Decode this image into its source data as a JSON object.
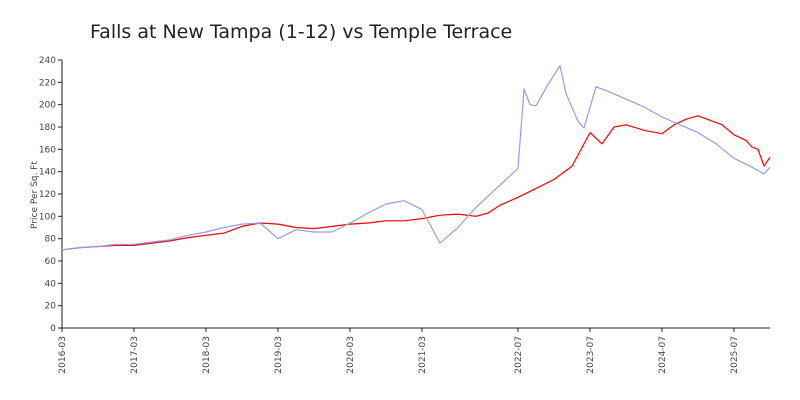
{
  "chart_data": {
    "type": "line",
    "title": "Falls at New Tampa (1-12) vs Temple Terrace",
    "xlabel": "",
    "ylabel": "Price Per Sq. Ft",
    "ylim": [
      0,
      240
    ],
    "yticks": [
      0,
      20,
      40,
      60,
      80,
      100,
      120,
      140,
      160,
      180,
      200,
      220,
      240
    ],
    "xlim": [
      "2016-03",
      "2026-01"
    ],
    "xticks": [
      "2016-03",
      "2017-03",
      "2018-03",
      "2019-03",
      "2020-03",
      "2021-03",
      "2022-07",
      "2023-07",
      "2024-07",
      "2025-07"
    ],
    "grid": false,
    "legend": "none",
    "series": [
      {
        "color": "#ff0000",
        "points": [
          [
            "2016-03",
            70
          ],
          [
            "2016-06",
            72
          ],
          [
            "2016-09",
            73
          ],
          [
            "2016-12",
            74
          ],
          [
            "2017-03",
            74
          ],
          [
            "2017-06",
            76
          ],
          [
            "2017-09",
            78
          ],
          [
            "2017-12",
            81
          ],
          [
            "2018-03",
            83
          ],
          [
            "2018-06",
            85
          ],
          [
            "2018-09",
            91
          ],
          [
            "2018-12",
            94
          ],
          [
            "2019-03",
            93
          ],
          [
            "2019-06",
            90
          ],
          [
            "2019-09",
            89
          ],
          [
            "2019-12",
            91
          ],
          [
            "2020-03",
            93
          ],
          [
            "2020-06",
            94
          ],
          [
            "2020-09",
            96
          ],
          [
            "2020-12",
            96
          ],
          [
            "2021-03",
            98
          ],
          [
            "2021-06",
            101
          ],
          [
            "2021-09",
            102
          ],
          [
            "2021-12",
            100
          ],
          [
            "2022-02",
            103
          ],
          [
            "2022-04",
            110
          ],
          [
            "2022-07",
            117
          ],
          [
            "2022-10",
            125
          ],
          [
            "2023-01",
            133
          ],
          [
            "2023-04",
            145
          ],
          [
            "2023-07",
            175
          ],
          [
            "2023-09",
            165
          ],
          [
            "2023-11",
            180
          ],
          [
            "2024-01",
            182
          ],
          [
            "2024-04",
            177
          ],
          [
            "2024-07",
            174
          ],
          [
            "2024-09",
            182
          ],
          [
            "2024-11",
            187
          ],
          [
            "2025-01",
            190
          ],
          [
            "2025-03",
            186
          ],
          [
            "2025-05",
            182
          ],
          [
            "2025-07",
            173
          ],
          [
            "2025-09",
            168
          ],
          [
            "2025-10",
            162
          ],
          [
            "2025-11",
            160
          ],
          [
            "2025-12",
            145
          ],
          [
            "2026-01",
            153
          ]
        ]
      },
      {
        "color": "#9999ee",
        "points": [
          [
            "2016-03",
            70
          ],
          [
            "2016-06",
            72
          ],
          [
            "2016-09",
            73
          ],
          [
            "2016-12",
            75
          ],
          [
            "2017-03",
            75
          ],
          [
            "2017-06",
            77
          ],
          [
            "2017-09",
            79
          ],
          [
            "2017-12",
            83
          ],
          [
            "2018-03",
            86
          ],
          [
            "2018-06",
            90
          ],
          [
            "2018-09",
            93
          ],
          [
            "2018-12",
            94
          ],
          [
            "2019-03",
            80
          ],
          [
            "2019-06",
            88
          ],
          [
            "2019-09",
            86
          ],
          [
            "2019-12",
            86
          ],
          [
            "2020-03",
            94
          ],
          [
            "2020-06",
            103
          ],
          [
            "2020-09",
            111
          ],
          [
            "2020-12",
            114
          ],
          [
            "2021-03",
            106
          ],
          [
            "2021-06",
            76
          ],
          [
            "2021-09",
            90
          ],
          [
            "2021-12",
            108
          ],
          [
            "2022-02",
            118
          ],
          [
            "2022-04",
            128
          ],
          [
            "2022-07",
            143
          ],
          [
            "2022-08",
            214
          ],
          [
            "2022-09",
            200
          ],
          [
            "2022-10",
            199
          ],
          [
            "2022-12",
            218
          ],
          [
            "2023-02",
            235
          ],
          [
            "2023-03",
            210
          ],
          [
            "2023-05",
            185
          ],
          [
            "2023-06",
            179
          ],
          [
            "2023-08",
            216
          ],
          [
            "2023-10",
            212
          ],
          [
            "2024-01",
            205
          ],
          [
            "2024-04",
            198
          ],
          [
            "2024-07",
            189
          ],
          [
            "2024-10",
            182
          ],
          [
            "2025-01",
            175
          ],
          [
            "2025-04",
            165
          ],
          [
            "2025-07",
            152
          ],
          [
            "2025-10",
            144
          ],
          [
            "2025-12",
            138
          ],
          [
            "2026-01",
            144
          ]
        ]
      }
    ]
  }
}
